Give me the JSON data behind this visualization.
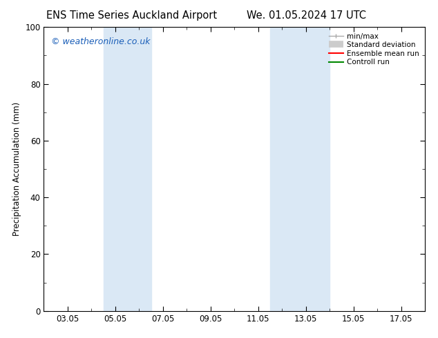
{
  "title_left": "ENS Time Series Auckland Airport",
  "title_right": "We. 01.05.2024 17 UTC",
  "ylabel": "Precipitation Accumulation (mm)",
  "ylim": [
    0,
    100
  ],
  "xtick_labels": [
    "03.05",
    "05.05",
    "07.05",
    "09.05",
    "11.05",
    "13.05",
    "15.05",
    "17.05"
  ],
  "xtick_positions": [
    2,
    4,
    6,
    8,
    10,
    12,
    14,
    16
  ],
  "xlim": [
    1,
    17
  ],
  "shaded_bands": [
    {
      "x_start": 3.5,
      "x_end": 5.5,
      "color": "#dae8f5"
    },
    {
      "x_start": 10.5,
      "x_end": 13.0,
      "color": "#dae8f5"
    }
  ],
  "watermark_text": "© weatheronline.co.uk",
  "watermark_color": "#1a5eb8",
  "legend_items": [
    {
      "label": "min/max",
      "type": "minmax",
      "color": "#aaaaaa"
    },
    {
      "label": "Standard deviation",
      "type": "stddev",
      "color": "#cccccc"
    },
    {
      "label": "Ensemble mean run",
      "type": "line",
      "color": "#ff0000",
      "linewidth": 1.5
    },
    {
      "label": "Controll run",
      "type": "line",
      "color": "#008800",
      "linewidth": 1.5
    }
  ],
  "background_color": "#ffffff",
  "plot_bg_color": "#ffffff",
  "tick_label_fontsize": 8.5,
  "title_fontsize": 10.5,
  "ylabel_fontsize": 8.5,
  "watermark_fontsize": 9
}
